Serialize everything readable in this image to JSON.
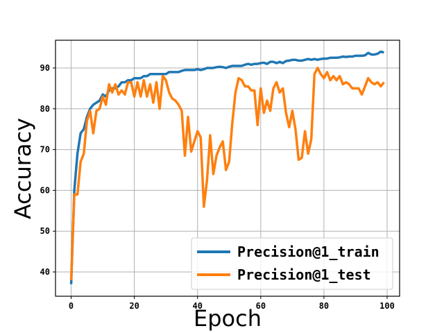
{
  "chart_data": {
    "type": "line",
    "xlabel": "Epoch",
    "ylabel": "Accuracy",
    "x": [
      0,
      1,
      2,
      3,
      4,
      5,
      6,
      7,
      8,
      9,
      10,
      11,
      12,
      13,
      14,
      15,
      16,
      17,
      18,
      19,
      20,
      21,
      22,
      23,
      24,
      25,
      26,
      27,
      28,
      29,
      30,
      31,
      32,
      33,
      34,
      35,
      36,
      37,
      38,
      39,
      40,
      41,
      42,
      43,
      44,
      45,
      46,
      47,
      48,
      49,
      50,
      51,
      52,
      53,
      54,
      55,
      56,
      57,
      58,
      59,
      60,
      61,
      62,
      63,
      64,
      65,
      66,
      67,
      68,
      69,
      70,
      71,
      72,
      73,
      74,
      75,
      76,
      77,
      78,
      79,
      80,
      81,
      82,
      83,
      84,
      85,
      86,
      87,
      88,
      89,
      90,
      91,
      92,
      93,
      94,
      95,
      96,
      97,
      98,
      99
    ],
    "series": [
      {
        "name": "Precision@1_train",
        "color": "#1f77b4",
        "values": [
          37,
          60,
          69,
          74,
          75,
          78,
          80,
          81,
          81.5,
          82,
          83.5,
          83,
          84.5,
          85,
          85,
          85.5,
          86.5,
          86.5,
          87,
          87,
          87.5,
          87.5,
          87.5,
          88,
          88,
          88.5,
          88.5,
          88.5,
          88.5,
          88.5,
          88.5,
          89,
          89,
          89,
          89,
          89.3,
          89.5,
          89.5,
          89.5,
          89.5,
          89.7,
          89.5,
          89.7,
          90,
          90,
          90,
          90.2,
          90.3,
          90.2,
          90,
          90.3,
          90.5,
          90.5,
          90.5,
          90.5,
          90.8,
          91,
          90.8,
          91,
          91,
          91.2,
          91.3,
          91,
          91.5,
          91.5,
          91.2,
          91.5,
          91.2,
          91.7,
          91.8,
          92,
          92,
          91.8,
          91.8,
          92,
          92.2,
          92,
          92.2,
          92,
          92.2,
          92.3,
          92.3,
          92.5,
          92.5,
          92.5,
          92.6,
          92.8,
          92.7,
          92.8,
          92.8,
          93,
          93,
          93,
          93.1,
          93.7,
          93.3,
          93.3,
          93.5,
          94,
          93.8
        ]
      },
      {
        "name": "Precision@1_test",
        "color": "#ff7f0e",
        "values": [
          38,
          59,
          59,
          67,
          69,
          77,
          79.5,
          74,
          79.5,
          80,
          83,
          81,
          86,
          84,
          86,
          83.5,
          84.5,
          83.5,
          86.5,
          86.5,
          83,
          86.5,
          83,
          87,
          83,
          86,
          81.5,
          86.5,
          80,
          88,
          87,
          84,
          82.5,
          82,
          81,
          79.5,
          68.5,
          78,
          69.5,
          72,
          74.5,
          73,
          56,
          62.5,
          73.5,
          64,
          68.5,
          70.5,
          72,
          65,
          67,
          76.5,
          84,
          87.5,
          87,
          85.5,
          85.5,
          84.5,
          84.5,
          76,
          85,
          79,
          82,
          79.5,
          85,
          86.5,
          84,
          85,
          79,
          75.5,
          79.5,
          75,
          67.5,
          68,
          74.5,
          69,
          72.5,
          88.5,
          90,
          88.5,
          87.5,
          89,
          87,
          88,
          87,
          88,
          86,
          86.5,
          86,
          85,
          85,
          85,
          83.5,
          85.5,
          87.5,
          86.5,
          86,
          86.5,
          85.5,
          86.5
        ]
      }
    ],
    "xlim": [
      -4.95,
      103.95
    ],
    "ylim": [
      34.05,
      96.8
    ],
    "xticks": [
      0,
      20,
      40,
      60,
      80,
      100
    ],
    "yticks": [
      40,
      50,
      60,
      70,
      80,
      90
    ],
    "grid": true,
    "legend": "lower right"
  }
}
